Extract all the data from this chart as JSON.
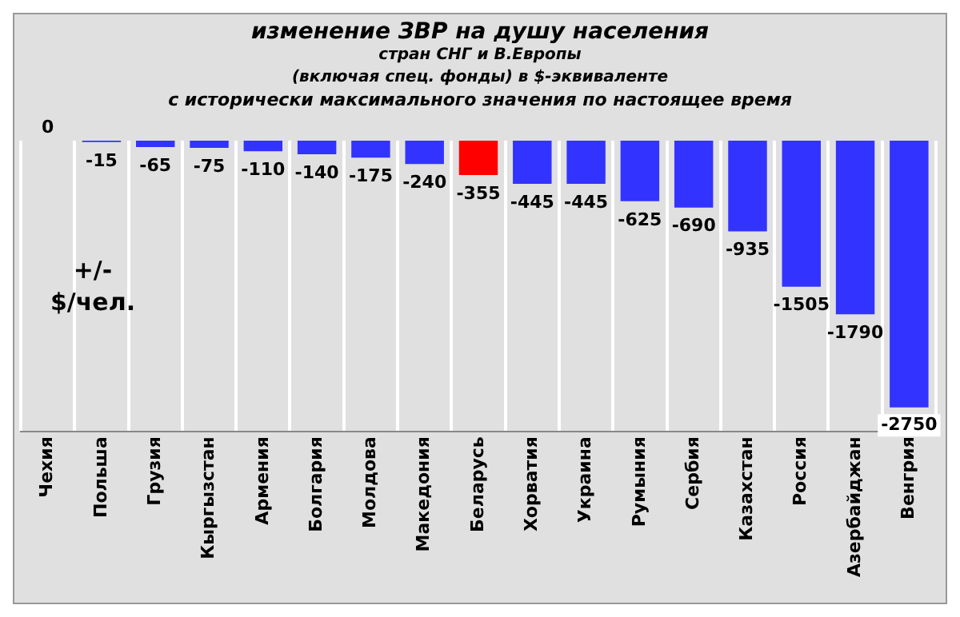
{
  "chart_data": {
    "type": "bar",
    "title": "изменение ЗВР на душу населения",
    "subtitle": "стран СНГ и В.Европы\n(включая спец. фонды) в $-эквиваленте\nс исторически максимального значения по настоящее время",
    "ylabel": "+/-\n$/чел.",
    "categories": [
      "Чехия",
      "Польша",
      "Грузия",
      "Кыргызстан",
      "Армения",
      "Болгария",
      "Молдова",
      "Македония",
      "Беларусь",
      "Хорватия",
      "Украина",
      "Румыния",
      "Сербия",
      "Казахстан",
      "Россия",
      "Азербайджан",
      "Венгрия"
    ],
    "values": [
      0,
      -15,
      -65,
      -75,
      -110,
      -140,
      -175,
      -240,
      -355,
      -445,
      -445,
      -625,
      -690,
      -935,
      -1505,
      -1790,
      -2750
    ],
    "colors": [
      "#3333ff",
      "#3333ff",
      "#3333ff",
      "#3333ff",
      "#3333ff",
      "#3333ff",
      "#3333ff",
      "#3333ff",
      "#ff0000",
      "#3333ff",
      "#3333ff",
      "#3333ff",
      "#3333ff",
      "#3333ff",
      "#3333ff",
      "#3333ff",
      "#3333ff"
    ],
    "data_labels": true,
    "grid": "x",
    "tick_labels": "x",
    "legend": false
  }
}
